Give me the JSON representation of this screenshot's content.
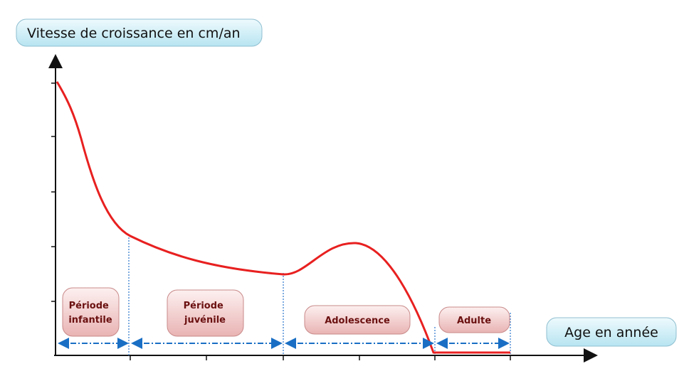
{
  "y_axis_label": "Vitesse de croissance en cm/an",
  "x_axis_label": "Age en année",
  "periods": [
    {
      "lines": [
        "Période",
        "infantile"
      ]
    },
    {
      "lines": [
        "Période",
        "juvénile"
      ]
    },
    {
      "lines": [
        "Adolescence"
      ]
    },
    {
      "lines": [
        "Adulte"
      ]
    }
  ]
}
